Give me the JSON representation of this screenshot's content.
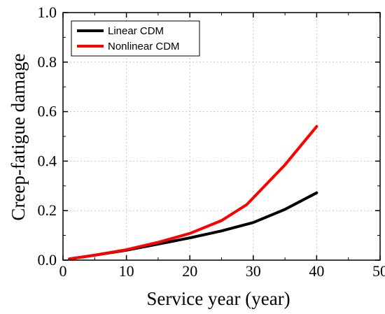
{
  "chart_data": {
    "type": "line",
    "xlabel": "Service year (year)",
    "ylabel": "Creep-fatigue damage",
    "xlim": [
      0,
      50
    ],
    "ylim": [
      0.0,
      1.0
    ],
    "x_ticks": [
      "0",
      "10",
      "20",
      "30",
      "40",
      "50"
    ],
    "y_ticks": [
      "0.0",
      "0.2",
      "0.4",
      "0.6",
      "0.8",
      "1.0"
    ],
    "grid": true,
    "legend_position": "top-left",
    "series": [
      {
        "name": "Linear CDM",
        "color": "#000000",
        "x": [
          1,
          5,
          10,
          15,
          20,
          25,
          30,
          35,
          40
        ],
        "y": [
          0.005,
          0.02,
          0.04,
          0.065,
          0.09,
          0.118,
          0.152,
          0.205,
          0.272
        ]
      },
      {
        "name": "Nonlinear CDM",
        "color": "#ff0000",
        "x": [
          1,
          5,
          10,
          15,
          20,
          25,
          29,
          35,
          40
        ],
        "y": [
          0.005,
          0.02,
          0.042,
          0.072,
          0.108,
          0.16,
          0.225,
          0.385,
          0.54
        ]
      }
    ]
  }
}
